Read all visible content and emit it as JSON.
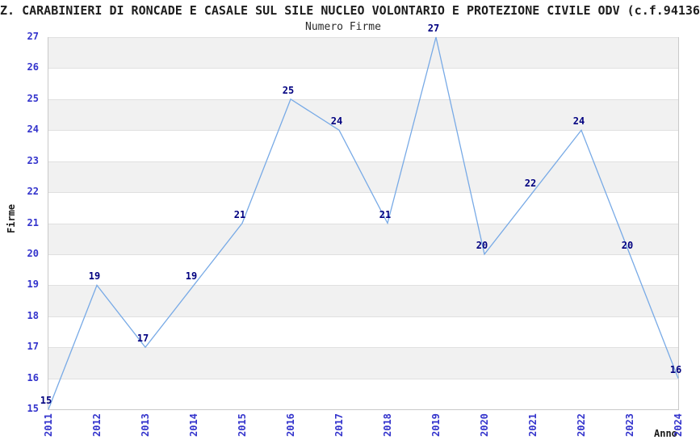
{
  "chart_data": {
    "type": "line",
    "title": "Z. CARABINIERI DI RONCADE E CASALE SUL SILE NUCLEO VOLONTARIO E PROTEZIONE CIVILE ODV (c.f.94136",
    "subtitle": "Numero Firme",
    "xlabel": "Anno",
    "ylabel": "Firme",
    "categories": [
      "2011",
      "2012",
      "2013",
      "2014",
      "2015",
      "2016",
      "2017",
      "2018",
      "2019",
      "2020",
      "2021",
      "2022",
      "2023",
      "2024"
    ],
    "values": [
      15,
      19,
      17,
      19,
      21,
      25,
      24,
      21,
      27,
      20,
      22,
      24,
      20,
      16
    ],
    "ylim": [
      15,
      27
    ],
    "y_ticks": [
      15,
      16,
      17,
      18,
      19,
      20,
      21,
      22,
      23,
      24,
      25,
      26,
      27
    ],
    "grid": true,
    "legend": "none",
    "colors": {
      "line": "#78aae6",
      "tick_label": "#3333cc",
      "value_label": "#000080",
      "band_gray": "#f1f1f1",
      "band_white": "#ffffff",
      "gridline": "#e0e0e0",
      "frame": "#c9c9c9",
      "text": "#1a1a1a"
    }
  }
}
